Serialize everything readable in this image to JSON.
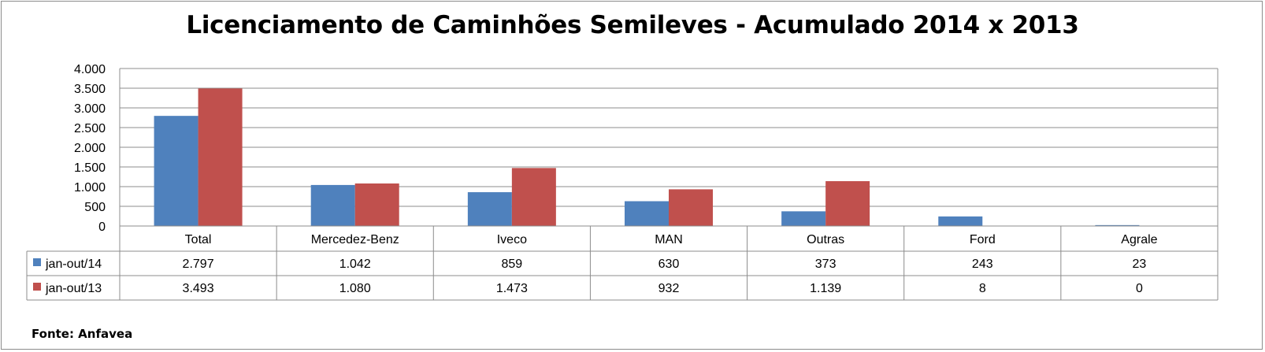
{
  "title": "Licenciamento de Caminhões Semileves - Acumulado 2014 x 2013",
  "source": "Fonte: Anfavea",
  "colors": {
    "series1": "#4f81bd",
    "series2": "#c0504d",
    "grid": "#8c8c8c"
  },
  "chart_data": {
    "type": "bar",
    "title": "Licenciamento de Caminhões Semileves - Acumulado 2014 x 2013",
    "categories": [
      "Total",
      "Mercedez-Benz",
      "Iveco",
      "MAN",
      "Outras",
      "Ford",
      "Agrale"
    ],
    "series": [
      {
        "name": "jan-out/14",
        "values": [
          2797,
          1042,
          859,
          630,
          373,
          243,
          23
        ],
        "labels": [
          "2.797",
          "1.042",
          "859",
          "630",
          "373",
          "243",
          "23"
        ]
      },
      {
        "name": "jan-out/13",
        "values": [
          3493,
          1080,
          1473,
          932,
          1139,
          8,
          0
        ],
        "labels": [
          "3.493",
          "1.080",
          "1.473",
          "932",
          "1.139",
          "8",
          "0"
        ]
      }
    ],
    "ylim": [
      0,
      4000
    ],
    "yticks": [
      0,
      500,
      1000,
      1500,
      2000,
      2500,
      3000,
      3500,
      4000
    ],
    "ytick_labels": [
      "0",
      "500",
      "1.000",
      "1.500",
      "2.000",
      "2.500",
      "3.000",
      "3.500",
      "4.000"
    ],
    "grid": true,
    "legend": "data-table"
  }
}
